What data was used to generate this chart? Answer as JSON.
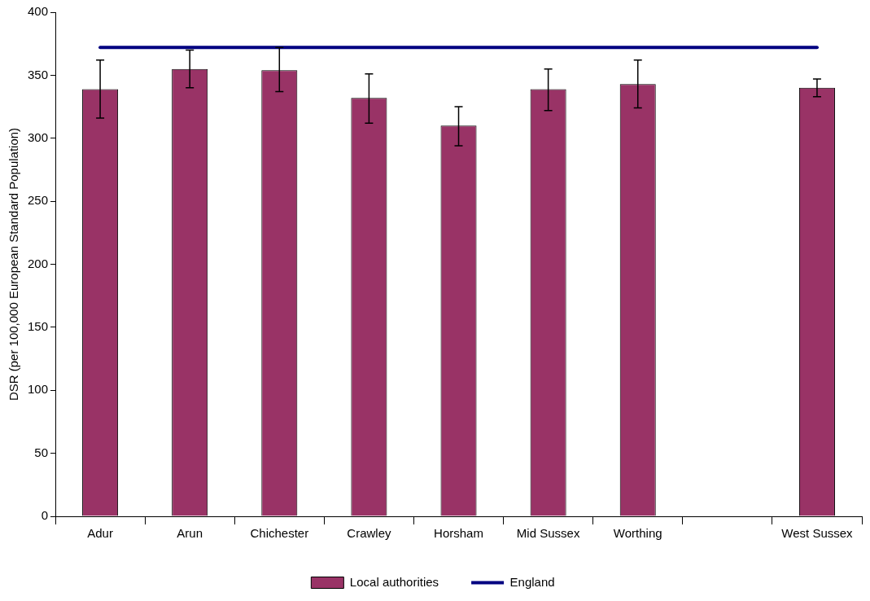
{
  "chart_data": {
    "type": "bar",
    "ylabel": "DSR (per 100,000 European Standard Population)",
    "categories": [
      "Adur",
      "Arun",
      "Chichester",
      "Crawley",
      "Horsham",
      "Mid Sussex",
      "Worthing",
      null,
      "West Sussex"
    ],
    "series": [
      {
        "name": "Local authorities",
        "color": "#993366",
        "values": [
          339,
          355,
          354,
          332,
          310,
          339,
          343,
          null,
          340
        ],
        "errors": [
          [
            316,
            362
          ],
          [
            340,
            370
          ],
          [
            337,
            372
          ],
          [
            312,
            351
          ],
          [
            294,
            325
          ],
          [
            322,
            355
          ],
          [
            324,
            362
          ],
          null,
          [
            333,
            347
          ]
        ]
      },
      {
        "name": "England",
        "type": "line",
        "color": "#000080",
        "values": [
          372,
          372,
          372,
          372,
          372,
          372,
          372,
          372,
          372
        ]
      }
    ],
    "ylim": [
      0,
      400
    ],
    "yticks": [
      0,
      50,
      100,
      150,
      200,
      250,
      300,
      350,
      400
    ],
    "grid": false,
    "legend": "bottom",
    "marker": "none"
  }
}
